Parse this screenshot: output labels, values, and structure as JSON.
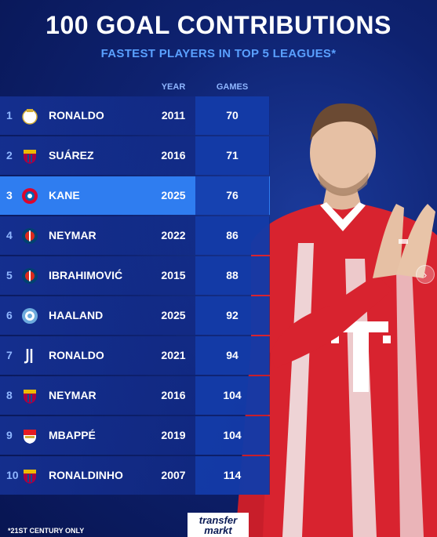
{
  "header": {
    "title": "100 GOAL CONTRIBUTIONS",
    "subtitle": "FASTEST PLAYERS IN TOP 5 LEAGUES*"
  },
  "columns": {
    "year": "YEAR",
    "games": "GAMES"
  },
  "rows": [
    {
      "rank": "1",
      "name": "RONALDO",
      "year": "2011",
      "games": "70",
      "club_icon": "real-madrid-badge-icon",
      "highlight": false
    },
    {
      "rank": "2",
      "name": "SUÁREZ",
      "year": "2016",
      "games": "71",
      "club_icon": "barcelona-badge-icon",
      "highlight": false
    },
    {
      "rank": "3",
      "name": "KANE",
      "year": "2025",
      "games": "76",
      "club_icon": "bayern-badge-icon",
      "highlight": true
    },
    {
      "rank": "4",
      "name": "NEYMAR",
      "year": "2022",
      "games": "86",
      "club_icon": "psg-badge-icon",
      "highlight": false
    },
    {
      "rank": "5",
      "name": "IBRAHIMOVIĆ",
      "year": "2015",
      "games": "88",
      "club_icon": "psg-badge-icon",
      "highlight": false
    },
    {
      "rank": "6",
      "name": "HAALAND",
      "year": "2025",
      "games": "92",
      "club_icon": "man-city-badge-icon",
      "highlight": false
    },
    {
      "rank": "7",
      "name": "RONALDO",
      "year": "2021",
      "games": "94",
      "club_icon": "juventus-badge-icon",
      "highlight": false
    },
    {
      "rank": "8",
      "name": "NEYMAR",
      "year": "2016",
      "games": "104",
      "club_icon": "barcelona-badge-icon",
      "highlight": false
    },
    {
      "rank": "9",
      "name": "MBAPPÉ",
      "year": "2019",
      "games": "104",
      "club_icon": "monaco-badge-icon",
      "highlight": false
    },
    {
      "rank": "10",
      "name": "RONALDINHO",
      "year": "2007",
      "games": "114",
      "club_icon": "barcelona-badge-icon",
      "highlight": false
    }
  ],
  "footnote": "*21ST CENTURY ONLY",
  "brand": {
    "line1": "transfer",
    "line2": "markt"
  },
  "colors": {
    "accent": "#2f7df0",
    "subtitle": "#5aa0ff",
    "background": "#0e2270"
  }
}
